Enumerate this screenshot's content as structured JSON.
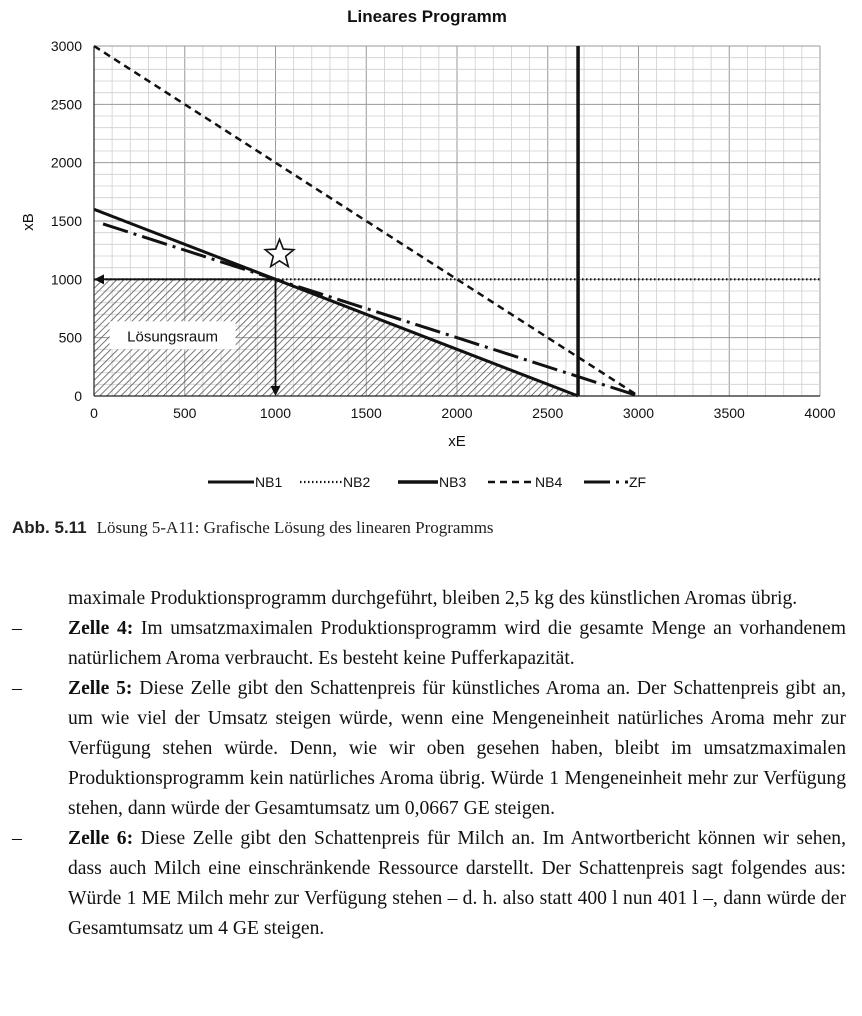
{
  "chart_data": {
    "type": "line",
    "title": "Lineares Programm",
    "xlabel": "xE",
    "ylabel": "xB",
    "xlim": [
      0,
      4000
    ],
    "ylim": [
      0,
      3000
    ],
    "xticks": [
      "0",
      "500",
      "1000",
      "1500",
      "2000",
      "2500",
      "3000",
      "3500",
      "4000"
    ],
    "yticks": [
      "0",
      "500",
      "1000",
      "1500",
      "2000",
      "2500",
      "3000"
    ],
    "grid": true,
    "legend_position": "bottom",
    "series": [
      {
        "name": "NB1",
        "style": "solid",
        "x": [
          0,
          2667
        ],
        "y": [
          1600,
          0
        ]
      },
      {
        "name": "NB2",
        "style": "dotted",
        "x": [
          0,
          4000
        ],
        "y": [
          1000,
          1000
        ]
      },
      {
        "name": "NB3",
        "style": "solid-vertical",
        "x": [
          2667,
          2667
        ],
        "y": [
          0,
          3000
        ]
      },
      {
        "name": "NB4",
        "style": "dashed",
        "x": [
          0,
          3000
        ],
        "y": [
          3000,
          0
        ]
      },
      {
        "name": "ZF",
        "style": "dash-dot",
        "x": [
          50,
          3000
        ],
        "y": [
          1475,
          0
        ]
      }
    ],
    "annotations": [
      {
        "text": "Lösungsraum",
        "x": 400,
        "y": 520
      }
    ],
    "optimum": {
      "x": 1000,
      "y": 1000,
      "marker": "star"
    },
    "colors": {
      "lines": "#111111",
      "grid": "#c8c8c8",
      "hatch": "#555555"
    }
  },
  "caption": {
    "label": "Abb. 5.11",
    "text": "Lösung 5-A11: Grafische Lösung des linearen Programms"
  },
  "body": {
    "continuation": "maximale Produktionsprogramm durchgeführt, bleiben 2,5 kg des künstlichen Aromas übrig.",
    "items": [
      {
        "label": "Zelle 4:",
        "text": " Im umsatzmaximalen Produktionsprogramm wird die gesamte Menge an vorhandenem natürlichem Aroma verbraucht. Es besteht keine Pufferkapazität."
      },
      {
        "label": "Zelle 5:",
        "text": " Diese Zelle gibt den Schattenpreis für künstliches Aroma an. Der Schattenpreis gibt an, um wie viel der Umsatz steigen würde, wenn eine Mengeneinheit natürliches Aroma mehr zur Verfügung stehen würde. Denn, wie wir oben gesehen haben, bleibt im umsatzmaximalen Produktionsprogramm kein natürliches Aroma übrig. Würde 1 Mengeneinheit mehr zur Verfügung stehen, dann würde der Gesamtumsatz um 0,0667 GE steigen."
      },
      {
        "label": "Zelle 6:",
        "text": " Diese Zelle gibt den Schattenpreis für Milch an. Im Antwortbericht können wir sehen, dass auch Milch eine einschränkende Ressource darstellt. Der Schattenpreis sagt folgendes aus: Würde 1 ME Milch mehr zur Verfügung stehen – d. h. also statt 400 l nun 401 l –, dann würde der Gesamtumsatz um 4 GE steigen."
      }
    ],
    "dash": "–"
  }
}
